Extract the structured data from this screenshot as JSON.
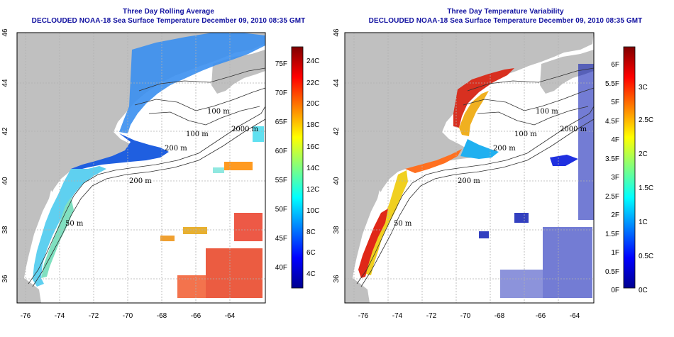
{
  "panels": [
    {
      "title": "Three Day Rolling Average",
      "subtitle": "DECLOUDED NOAA-18 Sea Surface Temperature December 09, 2010 08:35 GMT",
      "colorbar_f": [
        "75F",
        "70F",
        "65F",
        "60F",
        "55F",
        "50F",
        "45F",
        "40F"
      ],
      "colorbar_c": [
        "24C",
        "22C",
        "20C",
        "18C",
        "16C",
        "14C",
        "12C",
        "10C",
        "8C",
        "6C",
        "4C"
      ]
    },
    {
      "title": "Three Day Temperature Variability",
      "subtitle": "DECLOUDED NOAA-18 Sea Surface Temperature December 09, 2010 08:35 GMT",
      "colorbar_f": [
        "6F",
        "5.5F",
        "5F",
        "4.5F",
        "4F",
        "3.5F",
        "3F",
        "2.5F",
        "2F",
        "1.5F",
        "1F",
        "0.5F",
        "0F"
      ],
      "colorbar_c": [
        "3C",
        "2.5C",
        "2C",
        "1.5C",
        "1C",
        "0.5C",
        "0C"
      ]
    }
  ],
  "axes": {
    "lon_ticks": [
      "-76",
      "-74",
      "-72",
      "-70",
      "-68",
      "-66",
      "-64"
    ],
    "lat_ticks": [
      "46",
      "44",
      "42",
      "40",
      "38",
      "36"
    ]
  },
  "depth_labels": [
    "100 m",
    "2000 m",
    "100 m",
    "200 m",
    "200 m",
    "50 m",
    "50 m"
  ],
  "colors": {
    "land": "#c0c0c0",
    "ocean": "#ffffff",
    "title": "#1010a0",
    "contour": "#303030",
    "grid": "#b0b0b0"
  }
}
